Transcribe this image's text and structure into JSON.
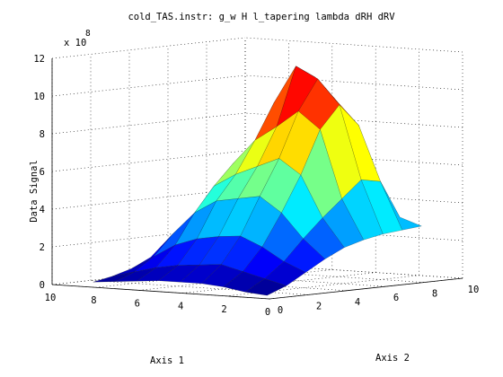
{
  "chart_data": {
    "type": "surface",
    "title": "cold_TAS.instr: g_w H l_tapering lambda dRH dRV",
    "xlabel": "Axis 1",
    "ylabel": "Axis 2",
    "zlabel": "Data Signal",
    "z_exponent_label": "x 10",
    "z_exponent": "8",
    "xlim": [
      0,
      10
    ],
    "ylim": [
      0,
      10
    ],
    "zlim": [
      0,
      12
    ],
    "x_ticks": [
      0,
      2,
      4,
      6,
      8,
      10
    ],
    "y_ticks": [
      0,
      2,
      4,
      6,
      8,
      10
    ],
    "z_ticks": [
      0,
      2,
      4,
      6,
      8,
      10,
      12
    ],
    "grid": true,
    "colormap": "jet",
    "x": [
      1,
      2,
      3,
      4,
      5,
      6,
      7,
      8,
      9
    ],
    "y": [
      1,
      2,
      3,
      4,
      5,
      6,
      7,
      8,
      9
    ],
    "z": [
      [
        0.0,
        0.4,
        1.0,
        1.6,
        2.1,
        2.4,
        2.6,
        2.7,
        2.8
      ],
      [
        0.1,
        0.7,
        1.5,
        2.6,
        3.6,
        4.5,
        5.4,
        5.2,
        3.2
      ],
      [
        0.3,
        1.0,
        2.2,
        3.9,
        5.8,
        8.1,
        9.3,
        8.1,
        3.5
      ],
      [
        0.4,
        1.3,
        2.7,
        4.7,
        6.6,
        9.0,
        10.6,
        9.3,
        5.8
      ],
      [
        0.4,
        1.2,
        2.6,
        4.5,
        6.1,
        8.1,
        11.2,
        10.5,
        7.0
      ],
      [
        0.4,
        1.1,
        2.4,
        4.3,
        5.6,
        7.3,
        9.2,
        9.3,
        6.5
      ],
      [
        0.3,
        0.9,
        2.0,
        3.6,
        4.9,
        6.0,
        6.8,
        7.0,
        5.9
      ],
      [
        0.2,
        0.6,
        1.3,
        2.4,
        3.2,
        3.9,
        4.5,
        4.7,
        4.4
      ],
      [
        0.1,
        0.3,
        0.6,
        1.1,
        1.6,
        2.0,
        2.2,
        2.4,
        2.3
      ]
    ]
  }
}
